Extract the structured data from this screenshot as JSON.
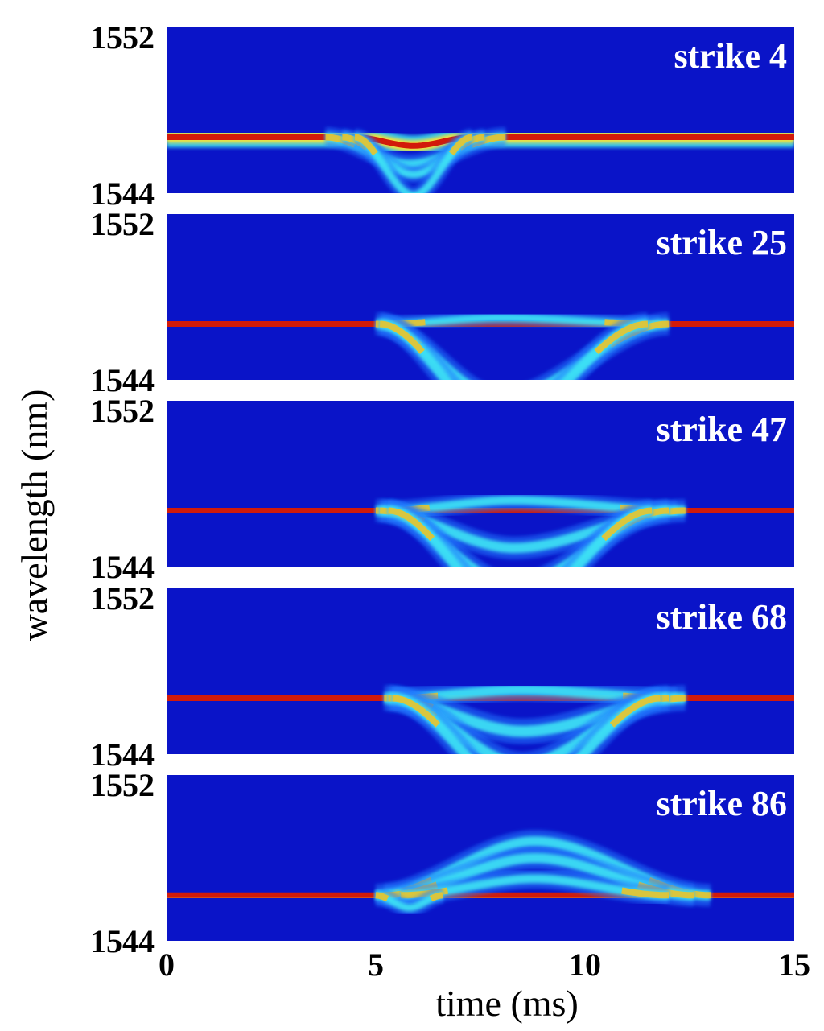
{
  "chart_data": {
    "type": "heatmap",
    "xlabel": "time (ms)",
    "ylabel": "wavelength (nm)",
    "xlim": [
      0,
      15
    ],
    "ylim": [
      1544,
      1552
    ],
    "x_ticks": [
      "0",
      "5",
      "10",
      "15"
    ],
    "y_ticks": [
      "1544",
      "1552"
    ],
    "colormap": "jet",
    "background_color": "#0a14c8",
    "panels": [
      {
        "label": "strike 4",
        "base_wavelength": 1546.7,
        "events": [
          {
            "start": 3.8,
            "peak": 5.8,
            "end": 8.1,
            "shift": -1.3,
            "width": 0.7
          },
          {
            "start": 4.2,
            "peak": 5.9,
            "end": 7.6,
            "shift": -1.8,
            "width": 0.6
          },
          {
            "start": 4.5,
            "peak": 5.9,
            "end": 7.3,
            "shift": -2.8,
            "width": 0.6
          }
        ]
      },
      {
        "label": "strike 25",
        "base_wavelength": 1546.7,
        "events": [
          {
            "start": 5.2,
            "peak": 8.0,
            "end": 11.8,
            "shift": 0.3,
            "width": 0.6
          },
          {
            "start": 5.0,
            "peak": 8.0,
            "end": 12.0,
            "shift": -3.6,
            "width": 0.8
          },
          {
            "start": 5.1,
            "peak": 8.0,
            "end": 11.5,
            "shift": -4.8,
            "width": 0.8
          }
        ]
      },
      {
        "label": "strike 47",
        "base_wavelength": 1546.7,
        "events": [
          {
            "start": 5.2,
            "peak": 8.3,
            "end": 12.2,
            "shift": 0.5,
            "width": 0.7
          },
          {
            "start": 5.0,
            "peak": 8.3,
            "end": 12.4,
            "shift": -1.8,
            "width": 0.8
          },
          {
            "start": 5.1,
            "peak": 8.3,
            "end": 12.0,
            "shift": -3.6,
            "width": 0.8
          },
          {
            "start": 5.3,
            "peak": 8.3,
            "end": 11.6,
            "shift": -4.8,
            "width": 0.8
          }
        ]
      },
      {
        "label": "strike 68",
        "base_wavelength": 1546.7,
        "events": [
          {
            "start": 5.4,
            "peak": 8.5,
            "end": 12.2,
            "shift": 0.4,
            "width": 0.8
          },
          {
            "start": 5.2,
            "peak": 8.5,
            "end": 12.4,
            "shift": -1.6,
            "width": 0.9
          },
          {
            "start": 5.3,
            "peak": 8.5,
            "end": 12.0,
            "shift": -3.2,
            "width": 0.9
          },
          {
            "start": 5.4,
            "peak": 8.5,
            "end": 11.8,
            "shift": -4.6,
            "width": 0.8
          }
        ]
      },
      {
        "label": "strike 86",
        "base_wavelength": 1546.2,
        "events": [
          {
            "start": 5.0,
            "peak": 8.8,
            "end": 13.0,
            "shift": 2.6,
            "width": 0.8
          },
          {
            "start": 5.2,
            "peak": 8.8,
            "end": 12.6,
            "shift": 1.8,
            "width": 0.8
          },
          {
            "start": 5.6,
            "peak": 8.8,
            "end": 12.0,
            "shift": 0.8,
            "width": 0.7
          },
          {
            "start": 5.0,
            "peak": 5.8,
            "end": 6.6,
            "shift": -0.6,
            "width": 0.6
          }
        ]
      }
    ]
  }
}
